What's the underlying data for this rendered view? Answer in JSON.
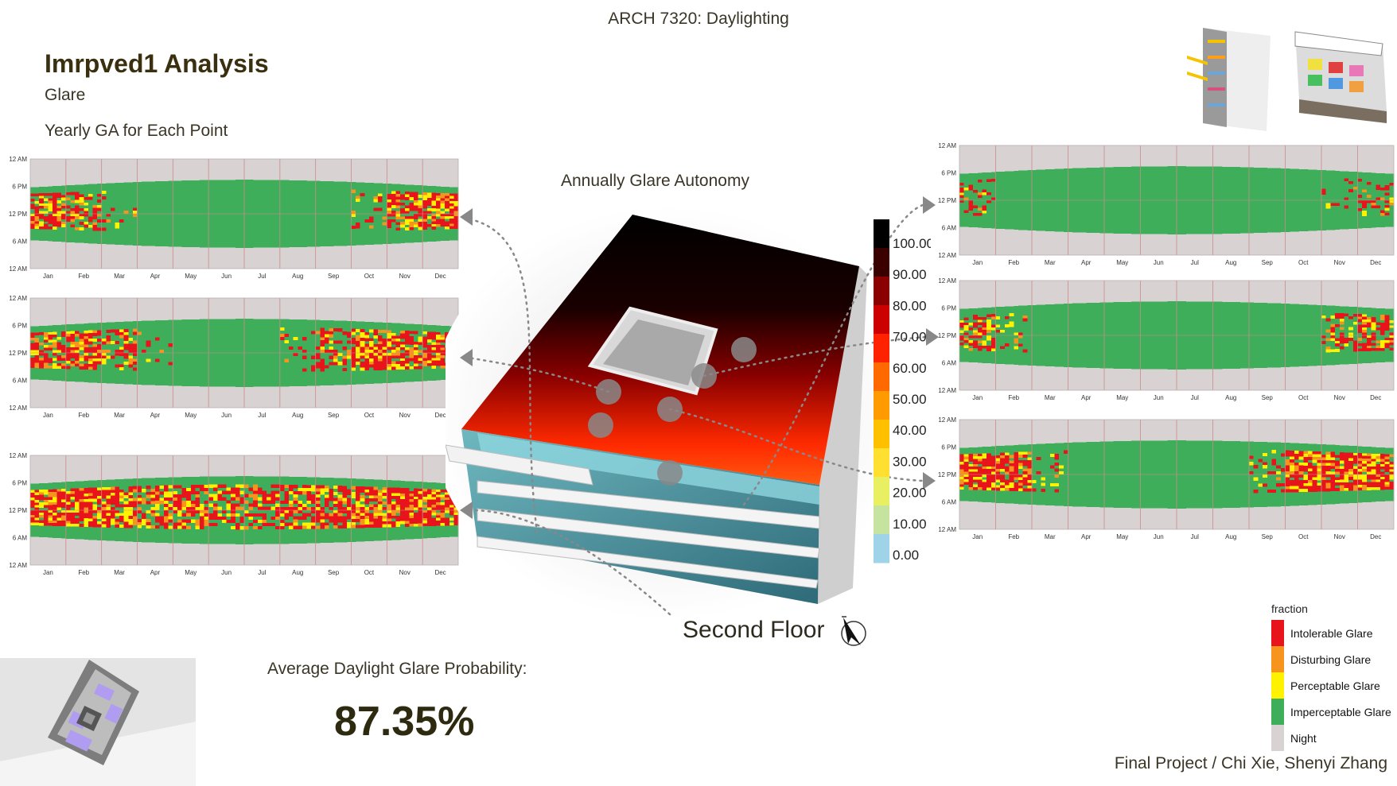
{
  "header": {
    "course": "ARCH 7320: Daylighting",
    "title": "Imrpved1 Analysis",
    "subtitle": "Glare",
    "section_label": "Yearly GA for Each Point"
  },
  "center": {
    "title": "Annually Glare Autonomy",
    "floor_label": "Second Floor"
  },
  "summary": {
    "label": "Average Daylight Glare Probability:",
    "value": "87.35%"
  },
  "credits": "Final Project / Chi Xie, Shenyi Zhang",
  "colors": {
    "intolerable": "#e8141c",
    "disturbing": "#f7941d",
    "perceptable": "#fff200",
    "imperceptable": "#3fae5a",
    "night": "#d9d2d2",
    "gridline": "#c98a8a"
  },
  "scale_legend": {
    "ticks": [
      "100.00",
      "90.00",
      "80.00",
      "70.00",
      "60.00",
      "50.00",
      "40.00",
      "30.00",
      "20.00",
      "10.00",
      "0.00"
    ],
    "colors": [
      "#000000",
      "#3a0000",
      "#8a0000",
      "#cc0000",
      "#ff2200",
      "#ff6a00",
      "#ff9a00",
      "#ffc000",
      "#ffe030",
      "#e8ef60",
      "#c6e4a0",
      "#9fd4e8"
    ]
  },
  "fraction_legend": {
    "title": "fraction",
    "items": [
      {
        "label": "Intolerable Glare",
        "color": "#e8141c"
      },
      {
        "label": "Disturbing Glare",
        "color": "#f7941d"
      },
      {
        "label": "Perceptable Glare",
        "color": "#fff200"
      },
      {
        "label": "Imperceptable Glare",
        "color": "#3fae5a"
      },
      {
        "label": "Night",
        "color": "#d9d2d2"
      }
    ]
  },
  "chart_data": [
    {
      "type": "heatmap",
      "id": "L1",
      "months": [
        "Jan",
        "Feb",
        "Mar",
        "Apr",
        "May",
        "Jun",
        "Jul",
        "Aug",
        "Sep",
        "Oct",
        "Nov",
        "Dec"
      ],
      "yticks": [
        "12 AM",
        "6 PM",
        "12 PM",
        "6 AM",
        "12 AM"
      ],
      "glare_intensity": [
        0.75,
        0.55,
        0.2,
        0,
        0,
        0,
        0,
        0,
        0,
        0.25,
        0.7,
        0.8
      ]
    },
    {
      "type": "heatmap",
      "id": "L2",
      "months": [
        "Jan",
        "Feb",
        "Mar",
        "Apr",
        "May",
        "Jun",
        "Jul",
        "Aug",
        "Sep",
        "Oct",
        "Nov",
        "Dec"
      ],
      "yticks": [
        "12 AM",
        "6 PM",
        "12 PM",
        "6 AM",
        "12 AM"
      ],
      "glare_intensity": [
        0.8,
        0.75,
        0.5,
        0.1,
        0,
        0,
        0,
        0.1,
        0.5,
        0.8,
        0.8,
        0.8
      ]
    },
    {
      "type": "heatmap",
      "id": "L3",
      "months": [
        "Jan",
        "Feb",
        "Mar",
        "Apr",
        "May",
        "Jun",
        "Jul",
        "Aug",
        "Sep",
        "Oct",
        "Nov",
        "Dec"
      ],
      "yticks": [
        "12 AM",
        "6 PM",
        "12 PM",
        "6 AM",
        "12 AM"
      ],
      "glare_intensity": [
        0.9,
        0.85,
        0.8,
        0.7,
        0.65,
        0.6,
        0.6,
        0.65,
        0.75,
        0.85,
        0.9,
        0.9
      ]
    },
    {
      "type": "heatmap",
      "id": "R1",
      "months": [
        "Jan",
        "Feb",
        "Mar",
        "Apr",
        "May",
        "Jun",
        "Jul",
        "Aug",
        "Sep",
        "Oct",
        "Nov",
        "Dec"
      ],
      "yticks": [
        "12 AM",
        "6 PM",
        "12 PM",
        "6 AM",
        "12 AM"
      ],
      "glare_intensity": [
        0.35,
        0,
        0,
        0,
        0,
        0,
        0,
        0,
        0,
        0,
        0.1,
        0.3
      ]
    },
    {
      "type": "heatmap",
      "id": "R2",
      "months": [
        "Jan",
        "Feb",
        "Mar",
        "Apr",
        "May",
        "Jun",
        "Jul",
        "Aug",
        "Sep",
        "Oct",
        "Nov",
        "Dec"
      ],
      "yticks": [
        "12 AM",
        "6 PM",
        "12 PM",
        "6 AM",
        "12 AM"
      ],
      "glare_intensity": [
        0.6,
        0.2,
        0,
        0,
        0,
        0,
        0,
        0,
        0,
        0,
        0.4,
        0.7
      ]
    },
    {
      "type": "heatmap",
      "id": "R3",
      "months": [
        "Jan",
        "Feb",
        "Mar",
        "Apr",
        "May",
        "Jun",
        "Jul",
        "Aug",
        "Sep",
        "Oct",
        "Nov",
        "Dec"
      ],
      "yticks": [
        "12 AM",
        "6 PM",
        "12 PM",
        "6 AM",
        "12 AM"
      ],
      "glare_intensity": [
        0.9,
        0.85,
        0.2,
        0,
        0,
        0,
        0,
        0,
        0.3,
        0.85,
        0.9,
        0.9
      ]
    }
  ]
}
